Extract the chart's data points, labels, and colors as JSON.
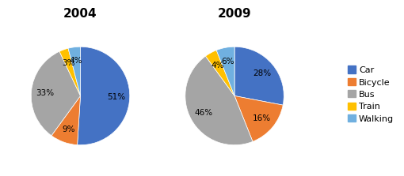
{
  "title_2004": "2004",
  "title_2009": "2009",
  "labels": [
    "Car",
    "Bicycle",
    "Bus",
    "Train",
    "Walking"
  ],
  "values_2004": [
    51,
    9,
    33,
    3,
    4
  ],
  "values_2009": [
    28,
    16,
    46,
    4,
    6
  ],
  "colors": [
    "#4472C4",
    "#ED7D31",
    "#A5A5A5",
    "#FFC000",
    "#70B0E0"
  ],
  "title_fontsize": 11,
  "label_fontsize": 7.5,
  "legend_fontsize": 8,
  "background_color": "#ffffff",
  "startangle_2004": 90,
  "startangle_2009": 90
}
